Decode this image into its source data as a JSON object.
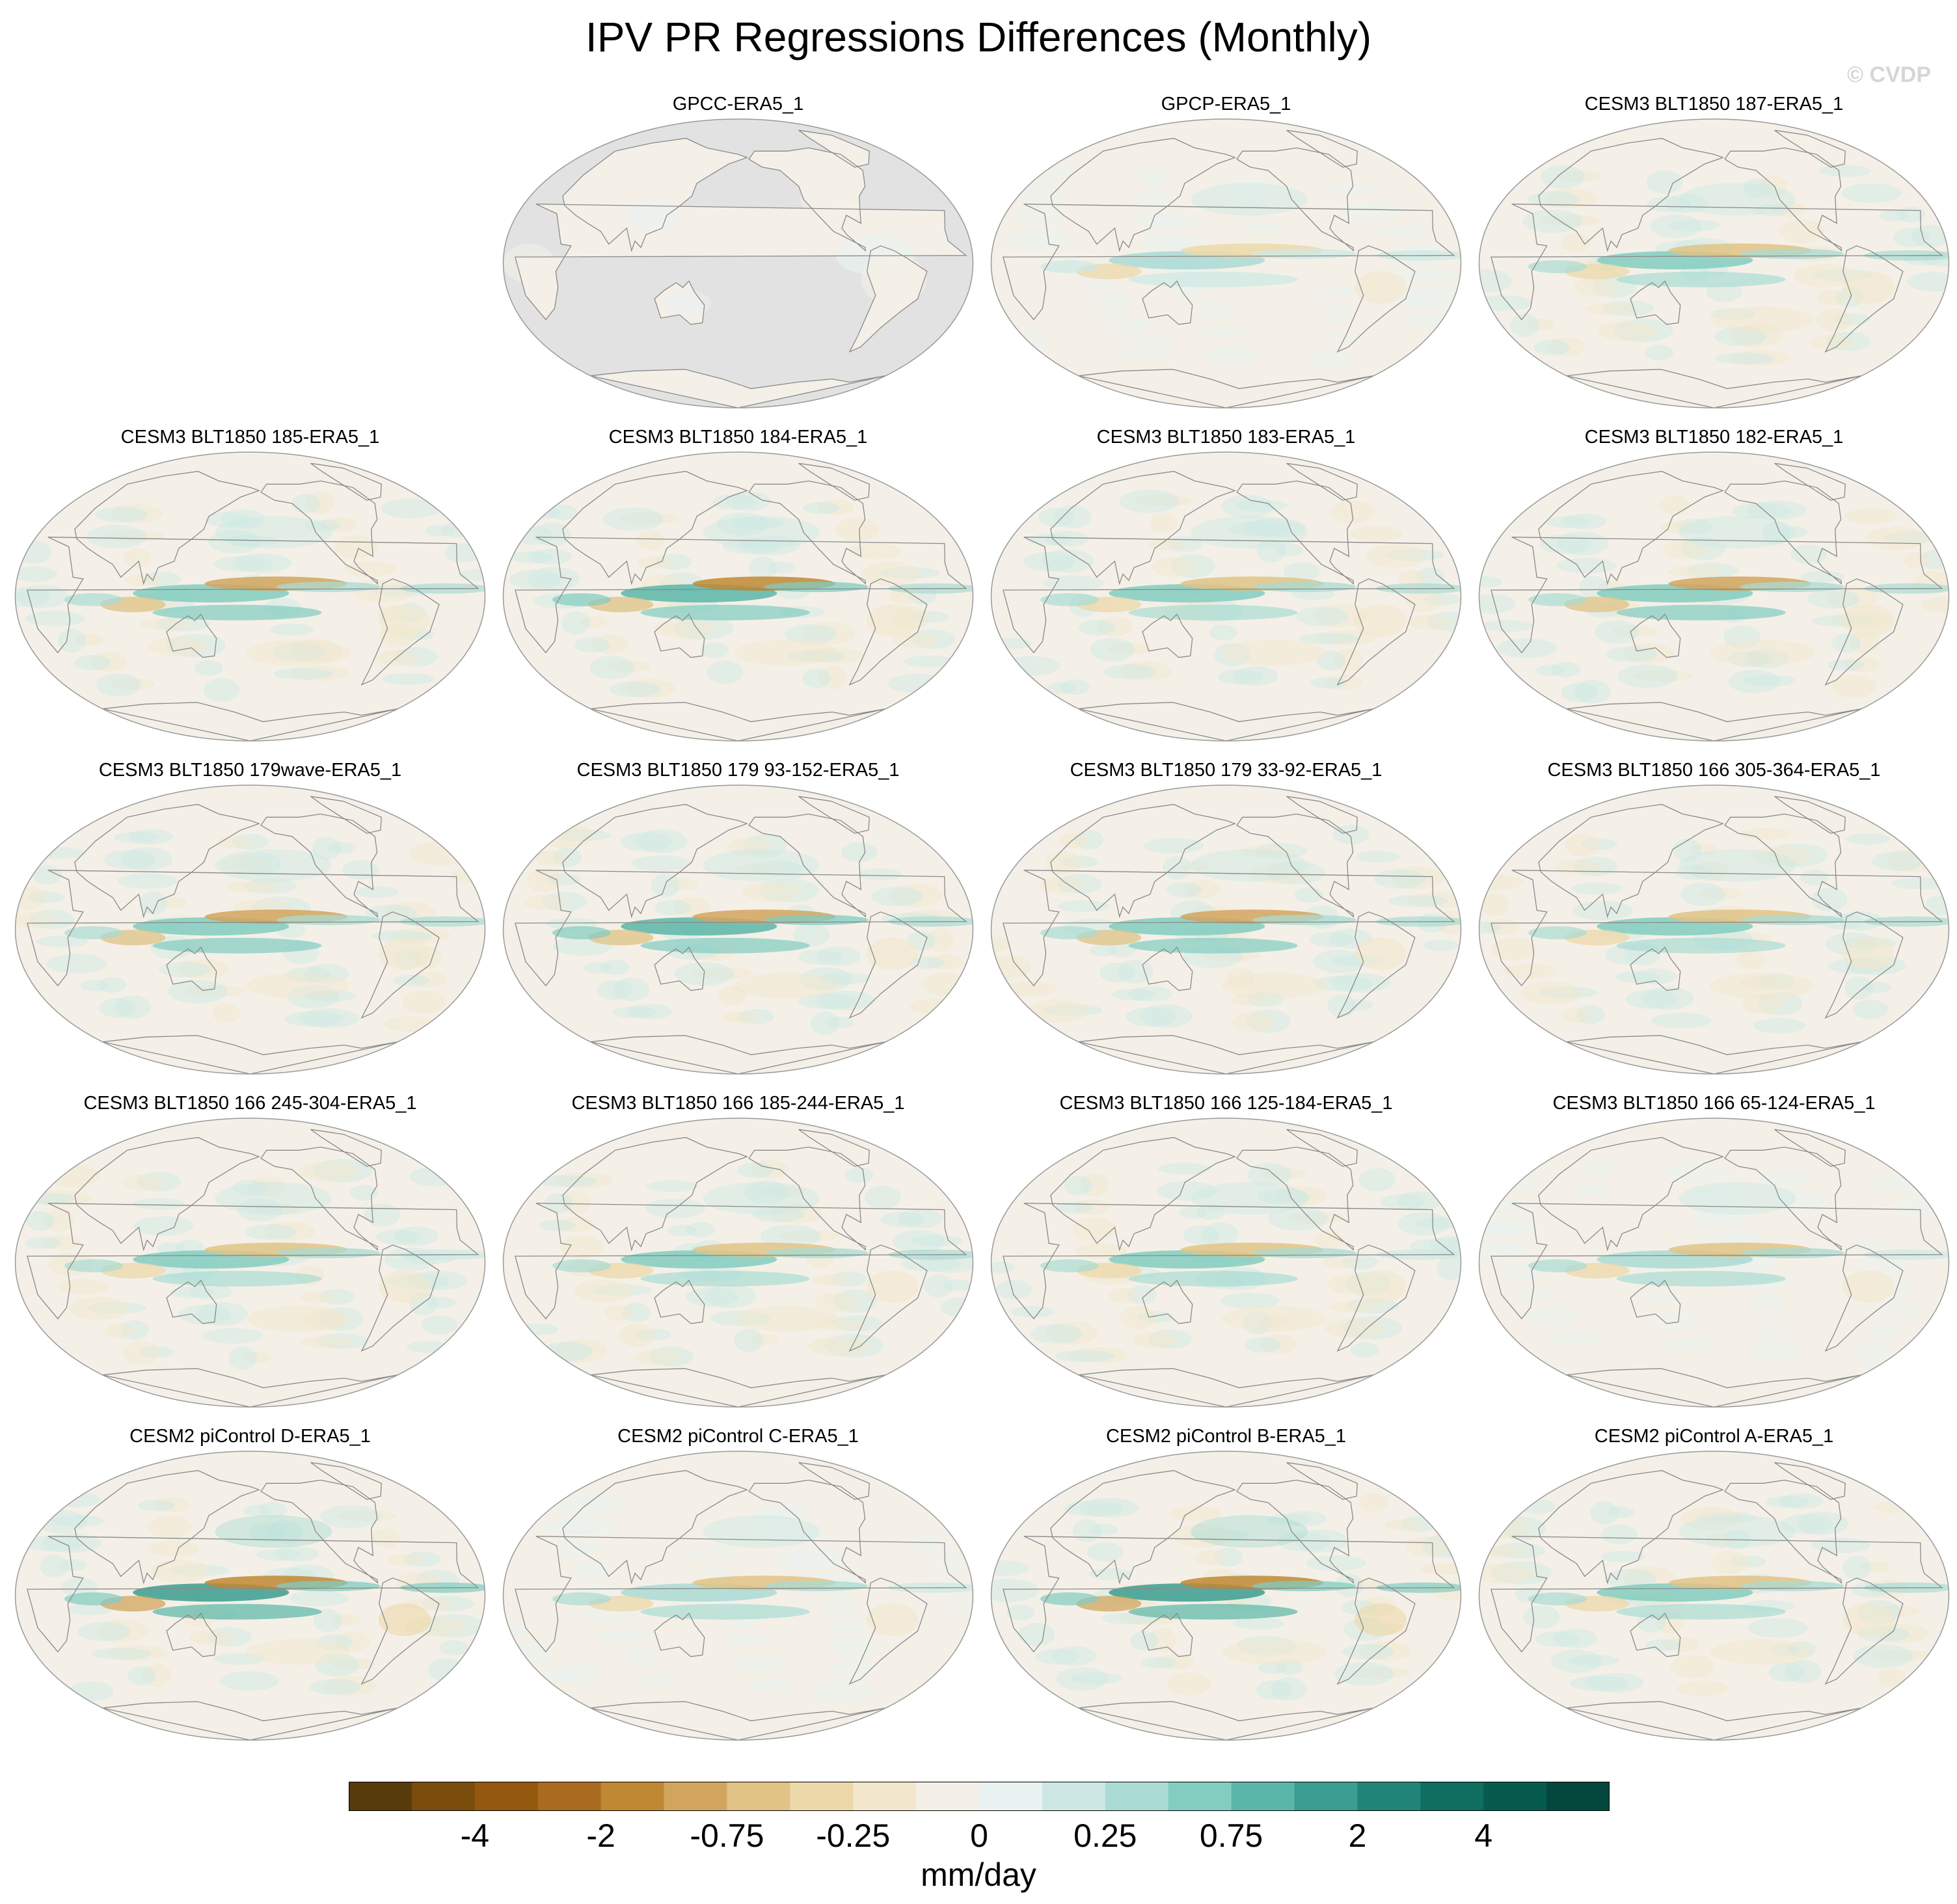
{
  "title": "IPV PR Regressions Differences (Monthly)",
  "watermark": "© CVDP",
  "colors": {
    "ocean_bg": "#f4f0e8",
    "land_grey": "#e2e2e2",
    "coast": "#8a8a8a",
    "outline": "#9a9a9a"
  },
  "panels": [
    {
      "title": "GPCC-ERA5_1",
      "land_only": true,
      "intensity": 0.5
    },
    {
      "title": "GPCP-ERA5_1",
      "land_only": false,
      "intensity": 0.7
    },
    {
      "title": "CESM3 BLT1850 187-ERA5_1",
      "land_only": false,
      "intensity": 1.0
    },
    {
      "title": "CESM3 BLT1850 185-ERA5_1",
      "land_only": false,
      "intensity": 1.1
    },
    {
      "title": "CESM3 BLT1850 184-ERA5_1",
      "land_only": false,
      "intensity": 1.3
    },
    {
      "title": "CESM3 BLT1850 183-ERA5_1",
      "land_only": false,
      "intensity": 1.0
    },
    {
      "title": "CESM3 BLT1850 182-ERA5_1",
      "land_only": false,
      "intensity": 1.1
    },
    {
      "title": "CESM3 BLT1850 179wave-ERA5_1",
      "land_only": false,
      "intensity": 1.1
    },
    {
      "title": "CESM3 BLT1850 179 93-152-ERA5_1",
      "land_only": false,
      "intensity": 1.2
    },
    {
      "title": "CESM3 BLT1850 179 33-92-ERA5_1",
      "land_only": false,
      "intensity": 1.1
    },
    {
      "title": "CESM3 BLT1850 166 305-364-ERA5_1",
      "land_only": false,
      "intensity": 1.0
    },
    {
      "title": "CESM3 BLT1850 166 245-304-ERA5_1",
      "land_only": false,
      "intensity": 0.9
    },
    {
      "title": "CESM3 BLT1850 166 185-244-ERA5_1",
      "land_only": false,
      "intensity": 1.0
    },
    {
      "title": "CESM3 BLT1850 166 125-184-ERA5_1",
      "land_only": false,
      "intensity": 0.9
    },
    {
      "title": "CESM3 BLT1850 166 65-124-ERA5_1",
      "land_only": false,
      "intensity": 0.8
    },
    {
      "title": "CESM2 piControl D-ERA5_1",
      "land_only": false,
      "intensity": 1.5
    },
    {
      "title": "CESM2 piControl C-ERA5_1",
      "land_only": false,
      "intensity": 0.8
    },
    {
      "title": "CESM2 piControl B-ERA5_1",
      "land_only": false,
      "intensity": 1.5
    },
    {
      "title": "CESM2 piControl A-ERA5_1",
      "land_only": false,
      "intensity": 1.0
    }
  ],
  "colorbar": {
    "units": "mm/day",
    "colors": [
      "#573b0b",
      "#7a4c0c",
      "#94590e",
      "#aa6a1f",
      "#c08833",
      "#d2a55e",
      "#e0c385",
      "#ecd8a9",
      "#f2e7cc",
      "#f4f0e8",
      "#e9f2f0",
      "#cde8e4",
      "#a9dbd3",
      "#82ccc0",
      "#5ab6a8",
      "#3a9d8f",
      "#208577",
      "#0e6e60",
      "#075a4e",
      "#03473d"
    ],
    "labels": [
      "-4",
      "-2",
      "-0.75",
      "-0.25",
      "0",
      "0.25",
      "0.75",
      "2",
      "4"
    ]
  }
}
